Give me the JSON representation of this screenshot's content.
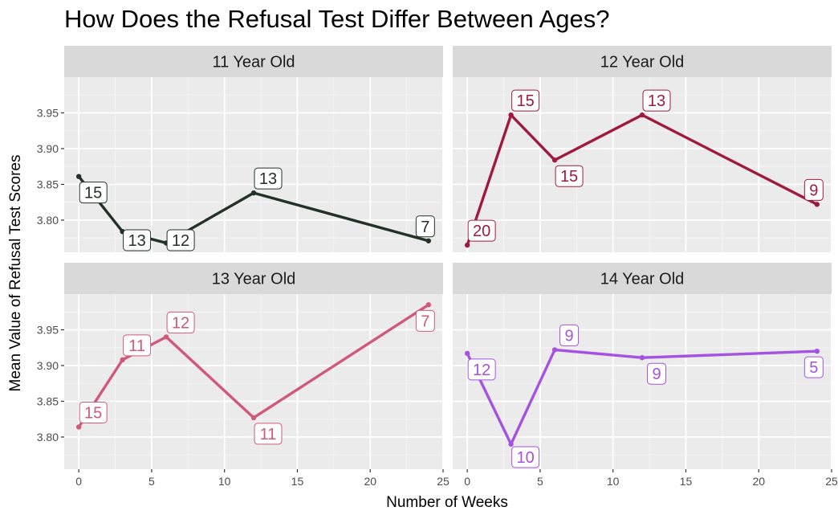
{
  "chart_data": {
    "type": "line",
    "title": "How Does the Refusal Test Differ Between Ages?",
    "xlabel": "Number of Weeks",
    "ylabel": "Mean Value of Refusal Test Scores",
    "xlim": [
      -1,
      25
    ],
    "ylim": [
      3.755,
      4.0
    ],
    "x_ticks": [
      0,
      5,
      10,
      15,
      20,
      25
    ],
    "y_ticks": [
      3.8,
      3.85,
      3.9,
      3.95
    ],
    "y_tick_labels": [
      "3.80",
      "3.85",
      "3.90",
      "3.95"
    ],
    "grid": true,
    "facets": [
      {
        "label": "11 Year Old",
        "color": "#233129",
        "x": [
          0,
          3,
          6,
          12,
          24
        ],
        "y": [
          3.861,
          3.784,
          3.768,
          3.838,
          3.771
        ],
        "n": [
          "15",
          "13",
          "12",
          "13",
          "7"
        ]
      },
      {
        "label": "12 Year Old",
        "color": "#9e1b3f",
        "x": [
          0,
          3,
          6,
          12,
          24
        ],
        "y": [
          3.765,
          3.947,
          3.884,
          3.947,
          3.822
        ],
        "n": [
          "20",
          "15",
          "15",
          "13",
          "9"
        ]
      },
      {
        "label": "13 Year Old",
        "color": "#d0587a",
        "x": [
          0,
          3,
          6,
          12,
          24
        ],
        "y": [
          3.814,
          3.908,
          3.94,
          3.827,
          3.985
        ],
        "n": [
          "15",
          "11",
          "12",
          "11",
          "7"
        ]
      },
      {
        "label": "14 Year Old",
        "color": "#a552e0",
        "x": [
          0,
          3,
          6,
          12,
          24
        ],
        "y": [
          3.917,
          3.79,
          3.922,
          3.911,
          3.92
        ],
        "n": [
          "12",
          "10",
          "9",
          "9",
          "5"
        ]
      }
    ]
  }
}
